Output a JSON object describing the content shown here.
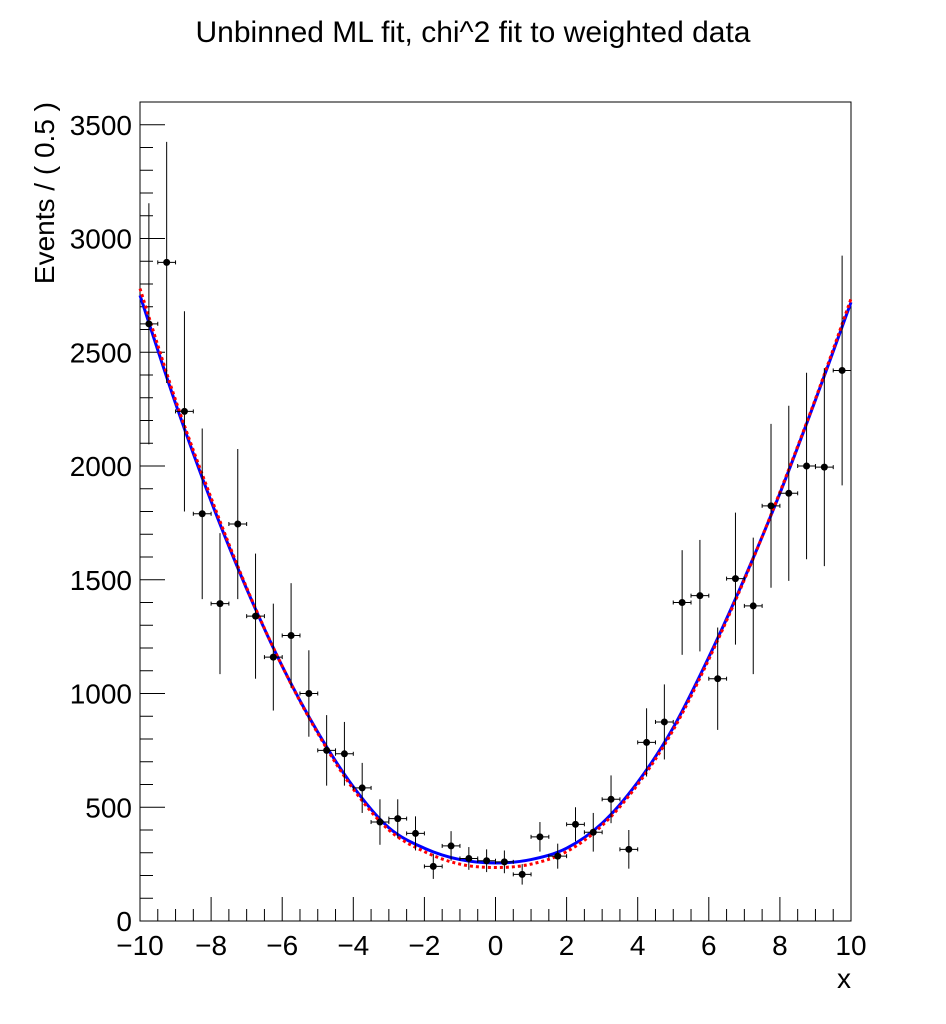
{
  "chart_data": {
    "type": "scatter",
    "title": "Unbinned ML fit, chi^2 fit to weighted data",
    "xlabel": "x",
    "ylabel": "Events / ( 0.5 )",
    "xlim": [
      -10,
      10
    ],
    "ylim": [
      0,
      3600
    ],
    "x_ticks": [
      -10,
      -8,
      -6,
      -4,
      -2,
      0,
      2,
      4,
      6,
      8,
      10
    ],
    "x_tick_labels": [
      "−10",
      "−8",
      "−6",
      "−4",
      "−2",
      "0",
      "2",
      "4",
      "6",
      "8",
      "10"
    ],
    "y_ticks": [
      0,
      500,
      1000,
      1500,
      2000,
      2500,
      3000,
      3500
    ],
    "y_tick_labels": [
      "0",
      "500",
      "1000",
      "1500",
      "2000",
      "2500",
      "3000",
      "3500"
    ],
    "grid": false,
    "series": [
      {
        "kind": "points-with-errors",
        "color": "#000000",
        "x_halfwidth": 0.25,
        "points": [
          {
            "x": -9.75,
            "y": 2625,
            "err": 530
          },
          {
            "x": -9.25,
            "y": 2895,
            "err": 530
          },
          {
            "x": -8.75,
            "y": 2240,
            "err": 440
          },
          {
            "x": -8.25,
            "y": 1790,
            "err": 375
          },
          {
            "x": -7.75,
            "y": 1395,
            "err": 310
          },
          {
            "x": -7.25,
            "y": 1745,
            "err": 330
          },
          {
            "x": -6.75,
            "y": 1340,
            "err": 275
          },
          {
            "x": -6.25,
            "y": 1160,
            "err": 235
          },
          {
            "x": -5.75,
            "y": 1255,
            "err": 230
          },
          {
            "x": -5.25,
            "y": 1000,
            "err": 190
          },
          {
            "x": -4.75,
            "y": 750,
            "err": 155
          },
          {
            "x": -4.25,
            "y": 735,
            "err": 140
          },
          {
            "x": -3.75,
            "y": 585,
            "err": 110
          },
          {
            "x": -3.25,
            "y": 435,
            "err": 100
          },
          {
            "x": -2.75,
            "y": 450,
            "err": 85
          },
          {
            "x": -2.25,
            "y": 385,
            "err": 75
          },
          {
            "x": -1.75,
            "y": 240,
            "err": 55
          },
          {
            "x": -1.25,
            "y": 330,
            "err": 65
          },
          {
            "x": -0.75,
            "y": 275,
            "err": 50
          },
          {
            "x": -0.25,
            "y": 265,
            "err": 50
          },
          {
            "x": 0.25,
            "y": 260,
            "err": 50
          },
          {
            "x": 0.75,
            "y": 205,
            "err": 45
          },
          {
            "x": 1.25,
            "y": 370,
            "err": 65
          },
          {
            "x": 1.75,
            "y": 285,
            "err": 55
          },
          {
            "x": 2.25,
            "y": 425,
            "err": 75
          },
          {
            "x": 2.75,
            "y": 390,
            "err": 85
          },
          {
            "x": 3.25,
            "y": 535,
            "err": 105
          },
          {
            "x": 3.75,
            "y": 315,
            "err": 85
          },
          {
            "x": 4.25,
            "y": 785,
            "err": 150
          },
          {
            "x": 4.75,
            "y": 875,
            "err": 165
          },
          {
            "x": 5.25,
            "y": 1400,
            "err": 230
          },
          {
            "x": 5.75,
            "y": 1430,
            "err": 245
          },
          {
            "x": 6.25,
            "y": 1065,
            "err": 225
          },
          {
            "x": 6.75,
            "y": 1505,
            "err": 290
          },
          {
            "x": 7.25,
            "y": 1385,
            "err": 300
          },
          {
            "x": 7.75,
            "y": 1825,
            "err": 360
          },
          {
            "x": 8.25,
            "y": 1880,
            "err": 385
          },
          {
            "x": 8.75,
            "y": 2000,
            "err": 410
          },
          {
            "x": 9.25,
            "y": 1995,
            "err": 435
          },
          {
            "x": 9.75,
            "y": 2420,
            "err": 505
          }
        ]
      },
      {
        "kind": "curve",
        "style": "solid",
        "color": "#0000ff",
        "x": [
          -10,
          -9,
          -8,
          -7,
          -6,
          -5,
          -4,
          -3,
          -2,
          -1,
          0,
          1,
          2,
          3,
          4,
          5,
          6,
          7,
          8,
          9,
          10
        ],
        "y": [
          2750,
          2275,
          1845,
          1460,
          1120,
          830,
          590,
          410,
          320,
          270,
          255,
          270,
          320,
          430,
          610,
          850,
          1160,
          1505,
          1880,
          2290,
          2720
        ]
      },
      {
        "kind": "curve",
        "style": "dotted",
        "color": "#ff0000",
        "x": [
          -10,
          -9,
          -8,
          -7,
          -6,
          -5,
          -4,
          -3,
          -2,
          -1,
          0,
          1,
          2,
          3,
          4,
          5,
          6,
          7,
          8,
          9,
          10
        ],
        "y": [
          2780,
          2290,
          1860,
          1465,
          1120,
          825,
          580,
          400,
          305,
          250,
          235,
          250,
          305,
          420,
          600,
          840,
          1150,
          1500,
          1885,
          2295,
          2735
        ]
      }
    ]
  }
}
